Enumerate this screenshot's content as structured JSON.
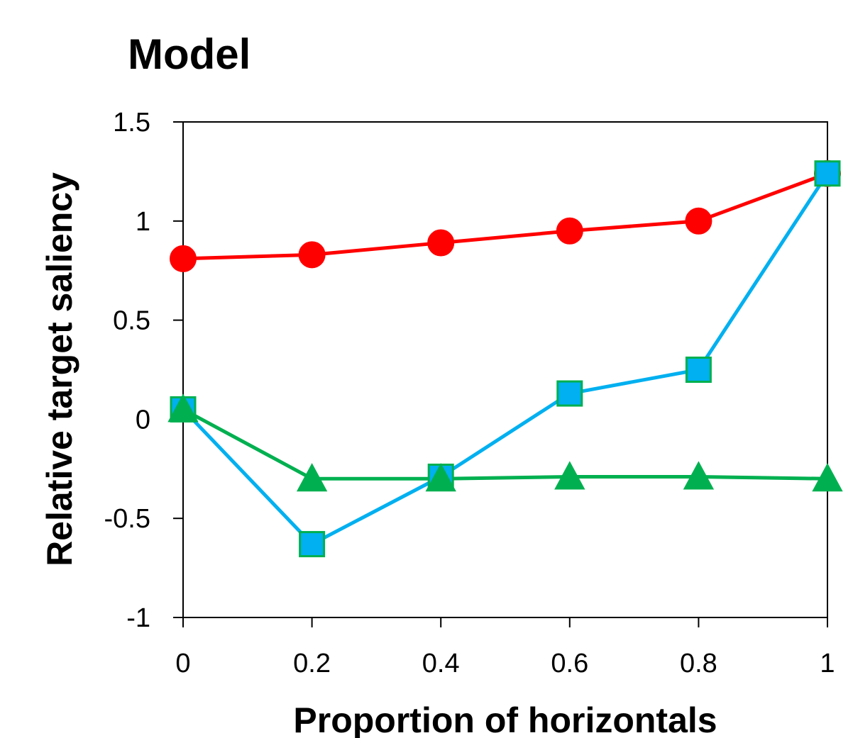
{
  "chart_data": {
    "type": "line",
    "title": "Model",
    "xlabel": "Proportion of horizontals",
    "ylabel": "Relative target saliency",
    "x": [
      0,
      0.2,
      0.4,
      0.6,
      0.8,
      1
    ],
    "x_tick_labels": [
      "0",
      "0.2",
      "0.4",
      "0.6",
      "0.8",
      "1"
    ],
    "y_tick_values": [
      -1,
      -0.5,
      0,
      0.5,
      1,
      1.5
    ],
    "y_tick_labels": [
      "-1",
      "-0.5",
      "0",
      "0.5",
      "1",
      "1.5"
    ],
    "xlim": [
      0,
      1
    ],
    "ylim": [
      -1,
      1.5
    ],
    "grid": false,
    "legend": "none",
    "series": [
      {
        "color": "#ff0000",
        "marker": "circle",
        "marker_fill": "#ff0000",
        "marker_stroke": "#ff0000",
        "values": [
          0.81,
          0.83,
          0.89,
          0.95,
          1.0,
          1.24
        ]
      },
      {
        "color": "#00b0f0",
        "marker": "square",
        "marker_fill": "#00b0f0",
        "marker_stroke": "#00b050",
        "values": [
          0.05,
          -0.63,
          -0.29,
          0.13,
          0.25,
          1.24
        ]
      },
      {
        "color": "#00b050",
        "marker": "triangle",
        "marker_fill": "#00b050",
        "marker_stroke": "#00b050",
        "values": [
          0.05,
          -0.3,
          -0.3,
          -0.29,
          -0.29,
          -0.3
        ]
      }
    ]
  }
}
